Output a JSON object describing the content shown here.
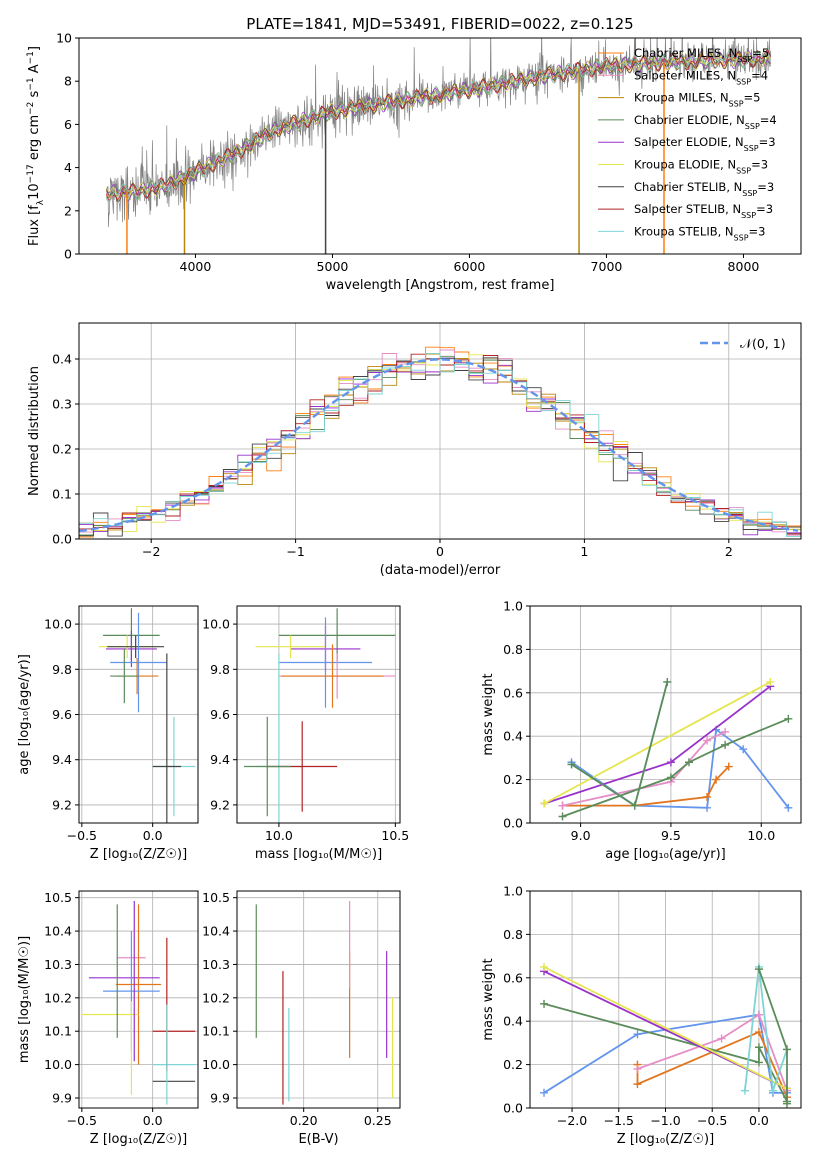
{
  "title": "PLATE=1841, MJD=53491, FIBERID=0022, z=0.125",
  "colors": {
    "grey": "#808080",
    "orange": "#ff7f0e",
    "olive": "#b8860b",
    "green": "#5b8c5a",
    "purple": "#9932cc",
    "yellow": "#e5e550",
    "darkgrey": "#444444",
    "red": "#b22222",
    "cyan": "#7fd4d4",
    "blue": "#6495ed",
    "orange2": "#e2761f",
    "pink": "#e58ec7",
    "seagreen": "#4f8f5e"
  },
  "chart_data": [
    {
      "type": "line",
      "id": "spectrum",
      "xlabel": "wavelength [Angstrom, rest frame]",
      "ylabel_parts": [
        "Flux [f",
        "λ",
        "10",
        "−17",
        " erg cm",
        "−2",
        " s",
        "−1",
        " A",
        "−1",
        "]"
      ],
      "xlim": [
        3150,
        8420
      ],
      "ylim": [
        0,
        10
      ],
      "xticks": [
        4000,
        5000,
        6000,
        7000,
        8000
      ],
      "yticks": [
        0,
        2,
        4,
        6,
        8,
        10
      ],
      "legend": [
        {
          "name": "Chabrier MILES, N",
          "sub": "SSP",
          "suffix": "=5",
          "color": "#ff7f0e"
        },
        {
          "name": "Salpeter MILES, N",
          "sub": "SSP",
          "suffix": "=4",
          "color": "#e58ec7"
        },
        {
          "name": "Kroupa MILES, N",
          "sub": "SSP",
          "suffix": "=5",
          "color": "#b8860b"
        },
        {
          "name": "Chabrier ELODIE, N",
          "sub": "SSP",
          "suffix": "=4",
          "color": "#5b8c5a"
        },
        {
          "name": "Salpeter ELODIE, N",
          "sub": "SSP",
          "suffix": "=3",
          "color": "#9932cc"
        },
        {
          "name": "Kroupa ELODIE, N",
          "sub": "SSP",
          "suffix": "=3",
          "color": "#e5e550"
        },
        {
          "name": "Chabrier STELIB, N",
          "sub": "SSP",
          "suffix": "=3",
          "color": "#444444"
        },
        {
          "name": "Salpeter STELIB, N",
          "sub": "SSP",
          "suffix": "=3",
          "color": "#b22222"
        },
        {
          "name": "Kroupa STELIB, N",
          "sub": "SSP",
          "suffix": "=3",
          "color": "#7fd4d4"
        }
      ],
      "data_range": [
        3350,
        8200
      ],
      "continuum": [
        [
          3350,
          2.8
        ],
        [
          3600,
          2.9
        ],
        [
          3800,
          3.2
        ],
        [
          4000,
          3.8
        ],
        [
          4300,
          4.7
        ],
        [
          4600,
          5.8
        ],
        [
          5000,
          6.6
        ],
        [
          5500,
          7.1
        ],
        [
          6000,
          7.6
        ],
        [
          6500,
          8.2
        ],
        [
          7000,
          8.7
        ],
        [
          7500,
          8.9
        ],
        [
          8000,
          9.0
        ],
        [
          8200,
          9.05
        ]
      ],
      "spikes_down": [
        {
          "x": 3500,
          "color": "#ff7f0e"
        },
        {
          "x": 3920,
          "color": "#b8860b"
        },
        {
          "x": 4950,
          "color": "#444444"
        },
        {
          "x": 6800,
          "color": "#b8860b"
        },
        {
          "x": 7420,
          "color": "#ff7f0e"
        }
      ]
    },
    {
      "type": "step",
      "id": "residuals",
      "xlabel": "(data-model)/error",
      "ylabel": "Normed distribution",
      "xlim": [
        -2.5,
        2.5
      ],
      "ylim": [
        0,
        0.48
      ],
      "xticks": [
        -2,
        -1,
        0,
        1,
        2
      ],
      "yticks": [
        0.0,
        0.1,
        0.2,
        0.3,
        0.4
      ],
      "legend": [
        {
          "name": "𝒩(0, 1)",
          "color": "#6495ed",
          "style": "dashed"
        }
      ],
      "bin_width": 0.1,
      "series_colors": [
        "#ff7f0e",
        "#e58ec7",
        "#b8860b",
        "#5b8c5a",
        "#9932cc",
        "#e5e550",
        "#444444",
        "#b22222",
        "#7fd4d4"
      ]
    },
    {
      "type": "errorbar",
      "id": "age_vs_z",
      "xlabel": "Z [log₁₀(Z/Z☉)]",
      "ylabel": "age  [log₁₀(age/yr)]",
      "xlim": [
        -0.52,
        0.32
      ],
      "ylim": [
        9.12,
        10.08
      ],
      "xticks": [
        -0.5,
        0.0,
        0.5
      ],
      "yticks": [
        9.2,
        9.4,
        9.6,
        9.8,
        10.0
      ],
      "points": [
        {
          "x": -0.15,
          "xerr": 0.2,
          "y": 9.95,
          "yerr": 0.12,
          "color": "#5b8c5a"
        },
        {
          "x": -0.15,
          "xerr": 0.18,
          "y": 9.89,
          "yerr": 0.08,
          "color": "#9932cc"
        },
        {
          "x": -0.18,
          "xerr": 0.2,
          "y": 9.9,
          "yerr": 0.05,
          "color": "#e5e550"
        },
        {
          "x": -0.12,
          "xerr": 0.2,
          "y": 9.9,
          "yerr": 0.05,
          "color": "#444444"
        },
        {
          "x": -0.1,
          "xerr": 0.2,
          "y": 9.83,
          "yerr": 0.22,
          "color": "#6495ed"
        },
        {
          "x": -0.11,
          "xerr": 0.15,
          "y": 9.77,
          "yerr": 0.08,
          "color": "#e2761f"
        },
        {
          "x": -0.2,
          "xerr": 0.1,
          "y": 9.77,
          "yerr": 0.12,
          "color": "#5b8c5a"
        },
        {
          "x": 0.15,
          "xerr": 0.15,
          "y": 9.37,
          "yerr": 0.22,
          "color": "#7fd4d4"
        },
        {
          "x": 0.1,
          "xerr": 0.1,
          "y": 9.37,
          "yerr": 0.5,
          "color": "#444444"
        }
      ]
    },
    {
      "type": "errorbar",
      "id": "age_vs_mass",
      "xlabel": "mass [log₁₀(M/M☉)]",
      "ylabel": "",
      "xlim": [
        9.82,
        10.52
      ],
      "ylim": [
        9.12,
        10.08
      ],
      "xticks": [
        10.0,
        10.5
      ],
      "yticks": [
        9.2,
        9.4,
        9.6,
        9.8,
        10.0
      ],
      "points": [
        {
          "x": 10.25,
          "xerr": 0.25,
          "y": 9.95,
          "yerr": 0.12,
          "color": "#5b8c5a"
        },
        {
          "x": 10.2,
          "xerr": 0.15,
          "y": 9.89,
          "yerr": 0.1,
          "color": "#9932cc"
        },
        {
          "x": 10.05,
          "xerr": 0.15,
          "y": 9.9,
          "yerr": 0.05,
          "color": "#e5e550"
        },
        {
          "x": 10.2,
          "xerr": 0.2,
          "y": 9.83,
          "yerr": 0.2,
          "color": "#6495ed"
        },
        {
          "x": 10.25,
          "xerr": 0.25,
          "y": 9.77,
          "yerr": 0.1,
          "color": "#e58ec7"
        },
        {
          "x": 10.23,
          "xerr": 0.22,
          "y": 9.77,
          "yerr": 0.14,
          "color": "#e2761f"
        },
        {
          "x": 10.0,
          "xerr": 0.1,
          "y": 9.37,
          "yerr": 0.5,
          "color": "#7fd4d4"
        },
        {
          "x": 10.1,
          "xerr": 0.15,
          "y": 9.37,
          "yerr": 0.2,
          "color": "#b22222"
        },
        {
          "x": 9.95,
          "xerr": 0.1,
          "y": 9.37,
          "yerr": 0.22,
          "color": "#5b8c5a"
        }
      ]
    },
    {
      "type": "line",
      "id": "weight_vs_age",
      "xlabel": "age  [log₁₀(age/yr)]",
      "ylabel": "mass weight",
      "xlim": [
        8.72,
        10.22
      ],
      "ylim": [
        0,
        1.0
      ],
      "xticks": [
        9.0,
        9.5,
        10.0
      ],
      "yticks": [
        0.0,
        0.2,
        0.4,
        0.6,
        0.8,
        1.0
      ],
      "series": [
        {
          "color": "#6495ed",
          "x": [
            8.95,
            9.3,
            9.7,
            9.75,
            9.9,
            10.15
          ],
          "y": [
            0.28,
            0.08,
            0.07,
            0.43,
            0.34,
            0.07
          ]
        },
        {
          "color": "#e2761f",
          "x": [
            8.9,
            9.3,
            9.7,
            9.75,
            9.82
          ],
          "y": [
            0.08,
            0.08,
            0.12,
            0.2,
            0.26
          ]
        },
        {
          "color": "#e58ec7",
          "x": [
            8.9,
            9.5,
            9.7,
            9.8
          ],
          "y": [
            0.08,
            0.19,
            0.38,
            0.42
          ]
        },
        {
          "color": "#5b8c5a",
          "x": [
            8.9,
            9.5,
            9.6,
            9.8,
            10.15
          ],
          "y": [
            0.03,
            0.21,
            0.28,
            0.36,
            0.48
          ]
        },
        {
          "color": "#9932cc",
          "x": [
            8.8,
            9.5,
            10.05
          ],
          "y": [
            0.09,
            0.28,
            0.63
          ]
        },
        {
          "color": "#e5e550",
          "x": [
            8.8,
            10.05
          ],
          "y": [
            0.09,
            0.65
          ]
        },
        {
          "color": "#7fd4d4",
          "x": [
            8.95,
            9.3,
            9.48
          ],
          "y": [
            0.27,
            0.08,
            0.65
          ]
        },
        {
          "color": "#5b8c5a",
          "x": [
            8.95,
            9.3,
            9.48
          ],
          "y": [
            0.27,
            0.08,
            0.65
          ]
        }
      ]
    },
    {
      "type": "errorbar",
      "id": "mass_vs_z",
      "xlabel": "Z [log₁₀(Z/Z☉)]",
      "ylabel": "mass [log₁₀(M/M☉)]",
      "xlim": [
        -0.52,
        0.32
      ],
      "ylim": [
        9.87,
        10.52
      ],
      "xticks": [
        -0.5,
        0.0
      ],
      "yticks": [
        9.9,
        10.0,
        10.1,
        10.2,
        10.3,
        10.4,
        10.5
      ],
      "points": [
        {
          "x": -0.15,
          "xerr": 0.1,
          "y": 10.32,
          "yerr": 0.0,
          "color": "#e58ec7"
        },
        {
          "x": -0.2,
          "xerr": 0.25,
          "y": 10.26,
          "yerr": 0.0,
          "color": "#9932cc"
        },
        {
          "x": -0.1,
          "xerr": 0.16,
          "y": 10.24,
          "yerr": 0.24,
          "color": "#e2761f"
        },
        {
          "x": -0.15,
          "xerr": 0.2,
          "y": 10.22,
          "yerr": 0.18,
          "color": "#6495ed"
        },
        {
          "x": -0.3,
          "xerr": 0.2,
          "y": 10.15,
          "yerr": 0.0,
          "color": "#e5e550"
        },
        {
          "x": 0.15,
          "xerr": 0.15,
          "y": 10.1,
          "yerr": 0.0,
          "color": "#b22222"
        },
        {
          "x": 0.15,
          "xerr": 0.15,
          "y": 10.0,
          "yerr": 0.0,
          "color": "#7fd4d4"
        },
        {
          "x": 0.15,
          "xerr": 0.15,
          "y": 9.95,
          "yerr": 0.0,
          "color": "#444444"
        },
        {
          "x": -0.25,
          "xerr": 0.0,
          "y": 10.28,
          "yerr": 0.2,
          "color": "#5b8c5a"
        },
        {
          "x": -0.13,
          "xerr": 0.0,
          "y": 10.25,
          "yerr": 0.24,
          "color": "#9932cc"
        },
        {
          "x": 0.1,
          "xerr": 0.0,
          "y": 10.18,
          "yerr": 0.2,
          "color": "#b22222"
        },
        {
          "x": 0.1,
          "xerr": 0.0,
          "y": 10.03,
          "yerr": 0.15,
          "color": "#7fd4d4"
        },
        {
          "x": -0.15,
          "xerr": 0.0,
          "y": 10.05,
          "yerr": 0.14,
          "color": "#e5e550"
        }
      ]
    },
    {
      "type": "errorbar",
      "id": "mass_vs_ebv",
      "xlabel": "E(B-V)",
      "ylabel": "",
      "xlim": [
        0.155,
        0.265
      ],
      "ylim": [
        9.87,
        10.52
      ],
      "xticks": [
        0.2,
        0.25
      ],
      "xticklabels": [
        "0.20",
        "0.25"
      ],
      "yticks": [
        9.9,
        10.0,
        10.1,
        10.2,
        10.3,
        10.4,
        10.5
      ],
      "points": [
        {
          "x": 0.168,
          "y": 10.28,
          "yerr": 0.2,
          "color": "#5b8c5a"
        },
        {
          "x": 0.186,
          "y": 10.08,
          "yerr": 0.2,
          "color": "#b22222"
        },
        {
          "x": 0.19,
          "y": 10.03,
          "yerr": 0.14,
          "color": "#7fd4d4"
        },
        {
          "x": 0.231,
          "y": 10.18,
          "yerr": 0.16,
          "color": "#e2761f"
        },
        {
          "x": 0.231,
          "y": 10.36,
          "yerr": 0.13,
          "color": "#e58ec7"
        },
        {
          "x": 0.256,
          "y": 10.18,
          "yerr": 0.16,
          "color": "#9932cc"
        },
        {
          "x": 0.26,
          "y": 10.05,
          "yerr": 0.15,
          "color": "#e5e550"
        }
      ]
    },
    {
      "type": "line",
      "id": "weight_vs_z",
      "xlabel": "Z [log₁₀(Z/Z☉)]",
      "ylabel": "mass weight",
      "xlim": [
        -2.45,
        0.45
      ],
      "ylim": [
        0,
        1.0
      ],
      "xticks": [
        -2.0,
        -1.5,
        -1.0,
        -0.5,
        0.0
      ],
      "yticks": [
        0.0,
        0.2,
        0.4,
        0.6,
        0.8,
        1.0
      ],
      "series": [
        {
          "color": "#6495ed",
          "x": [
            -2.3,
            -1.3,
            0.0,
            0.15,
            0.3
          ],
          "y": [
            0.07,
            0.34,
            0.43,
            0.07,
            0.07
          ]
        },
        {
          "color": "#e2761f",
          "x": [
            -1.3,
            -1.3,
            0.0,
            0.3
          ],
          "y": [
            0.2,
            0.11,
            0.35,
            0.05
          ]
        },
        {
          "color": "#e58ec7",
          "x": [
            -1.3,
            -0.4,
            0.0,
            0.3
          ],
          "y": [
            0.18,
            0.32,
            0.43,
            0.08
          ]
        },
        {
          "color": "#5b8c5a",
          "x": [
            -2.3,
            0.0,
            0.0,
            0.3
          ],
          "y": [
            0.48,
            0.21,
            0.28,
            0.03
          ]
        },
        {
          "color": "#9932cc",
          "x": [
            -2.3,
            0.3
          ],
          "y": [
            0.63,
            0.09
          ]
        },
        {
          "color": "#e5e550",
          "x": [
            -2.3,
            0.3
          ],
          "y": [
            0.65,
            0.09
          ]
        },
        {
          "color": "#7fd4d4",
          "x": [
            -0.15,
            0.0,
            0.15,
            0.3
          ],
          "y": [
            0.08,
            0.65,
            0.08,
            0.27
          ]
        },
        {
          "color": "#5b8c5a",
          "x": [
            0.0,
            0.3,
            0.3
          ],
          "y": [
            0.64,
            0.27,
            0.02
          ]
        }
      ]
    }
  ]
}
